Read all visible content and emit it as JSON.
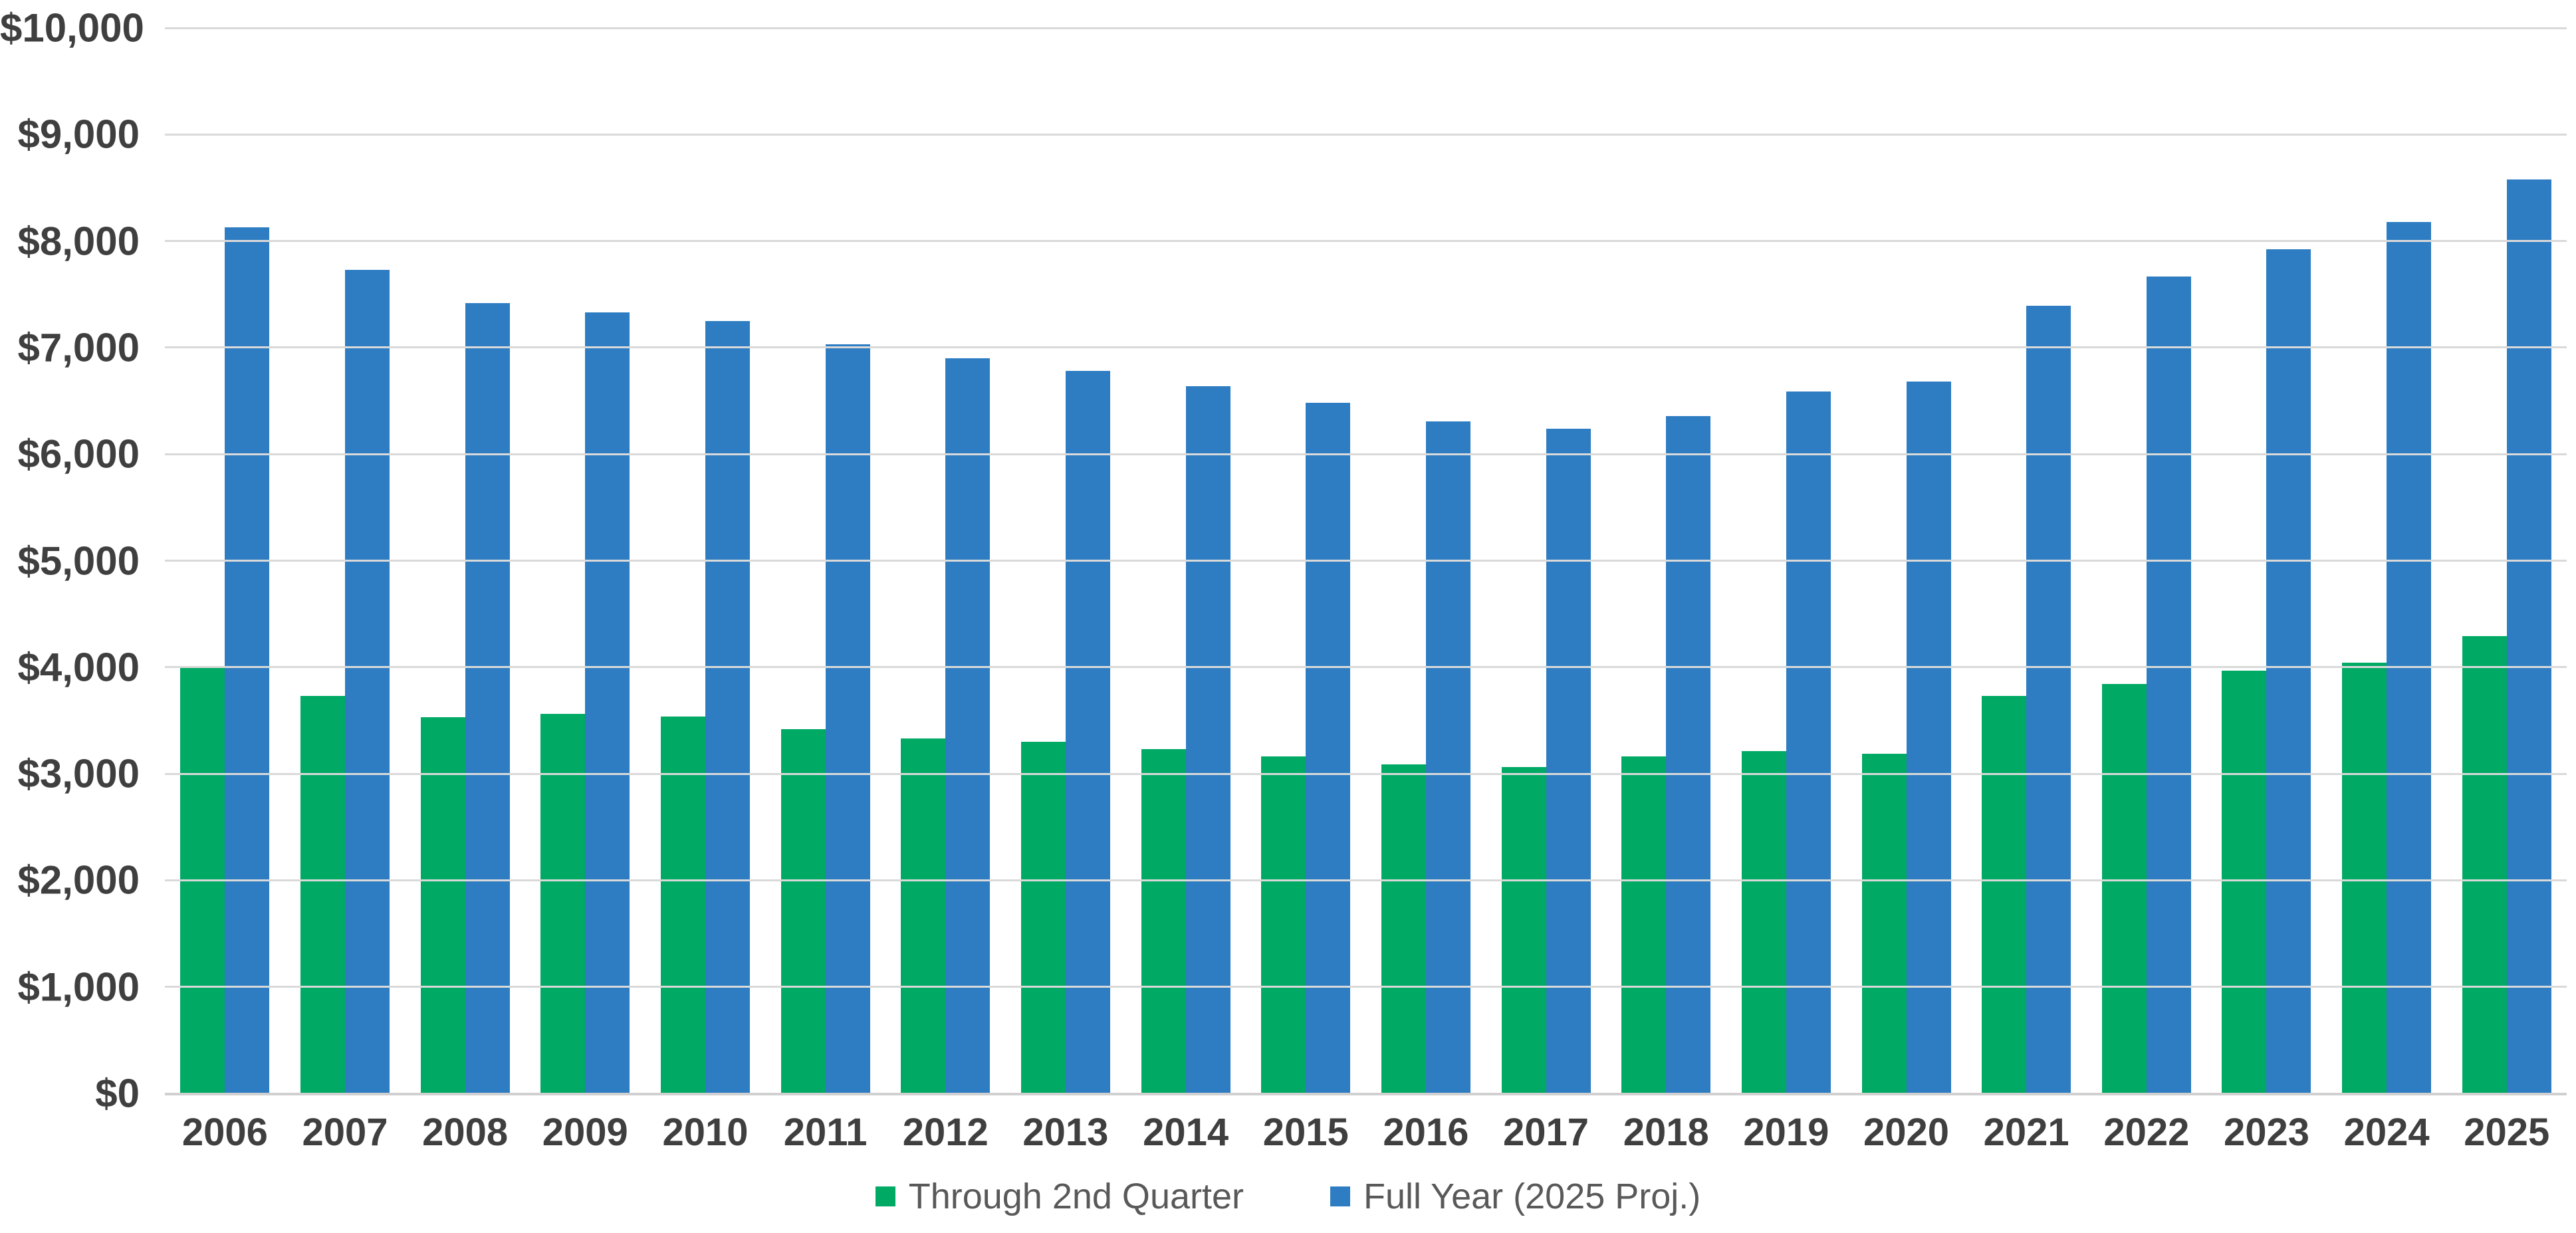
{
  "chart_data": {
    "type": "bar",
    "title": "",
    "categories": [
      "2006",
      "2007",
      "2008",
      "2009",
      "2010",
      "2011",
      "2012",
      "2013",
      "2014",
      "2015",
      "2016",
      "2017",
      "2018",
      "2019",
      "2020",
      "2021",
      "2022",
      "2023",
      "2024",
      "2025"
    ],
    "series": [
      {
        "name": "Through 2nd Quarter",
        "color": "#00a964",
        "values": [
          3990,
          3730,
          3530,
          3560,
          3540,
          3420,
          3330,
          3300,
          3230,
          3160,
          3090,
          3060,
          3160,
          3210,
          3190,
          3730,
          3840,
          3970,
          4040,
          4290
        ]
      },
      {
        "name": "Full Year (2025 Proj.)",
        "color": "#2e7dc2",
        "values": [
          8130,
          7730,
          7420,
          7330,
          7250,
          7030,
          6900,
          6780,
          6640,
          6480,
          6310,
          6240,
          6360,
          6590,
          6680,
          7390,
          7670,
          7920,
          8180,
          8580
        ]
      }
    ],
    "ylim": [
      0,
      10000
    ],
    "ytick_step": 1000,
    "ytick_labels": [
      "$0",
      "$1,000",
      "$2,000",
      "$3,000",
      "$4,000",
      "$5,000",
      "$6,000",
      "$7,000",
      "$8,000",
      "$9,000",
      "$10,000"
    ],
    "xlabel": "",
    "ylabel": "",
    "grid": true,
    "legend_position": "bottom"
  },
  "colors": {
    "axis_text": "#3f3f3f",
    "legend_text": "#595959",
    "gridline": "#d9d9d9",
    "baseline": "#d0d0d0",
    "background": "#ffffff"
  }
}
